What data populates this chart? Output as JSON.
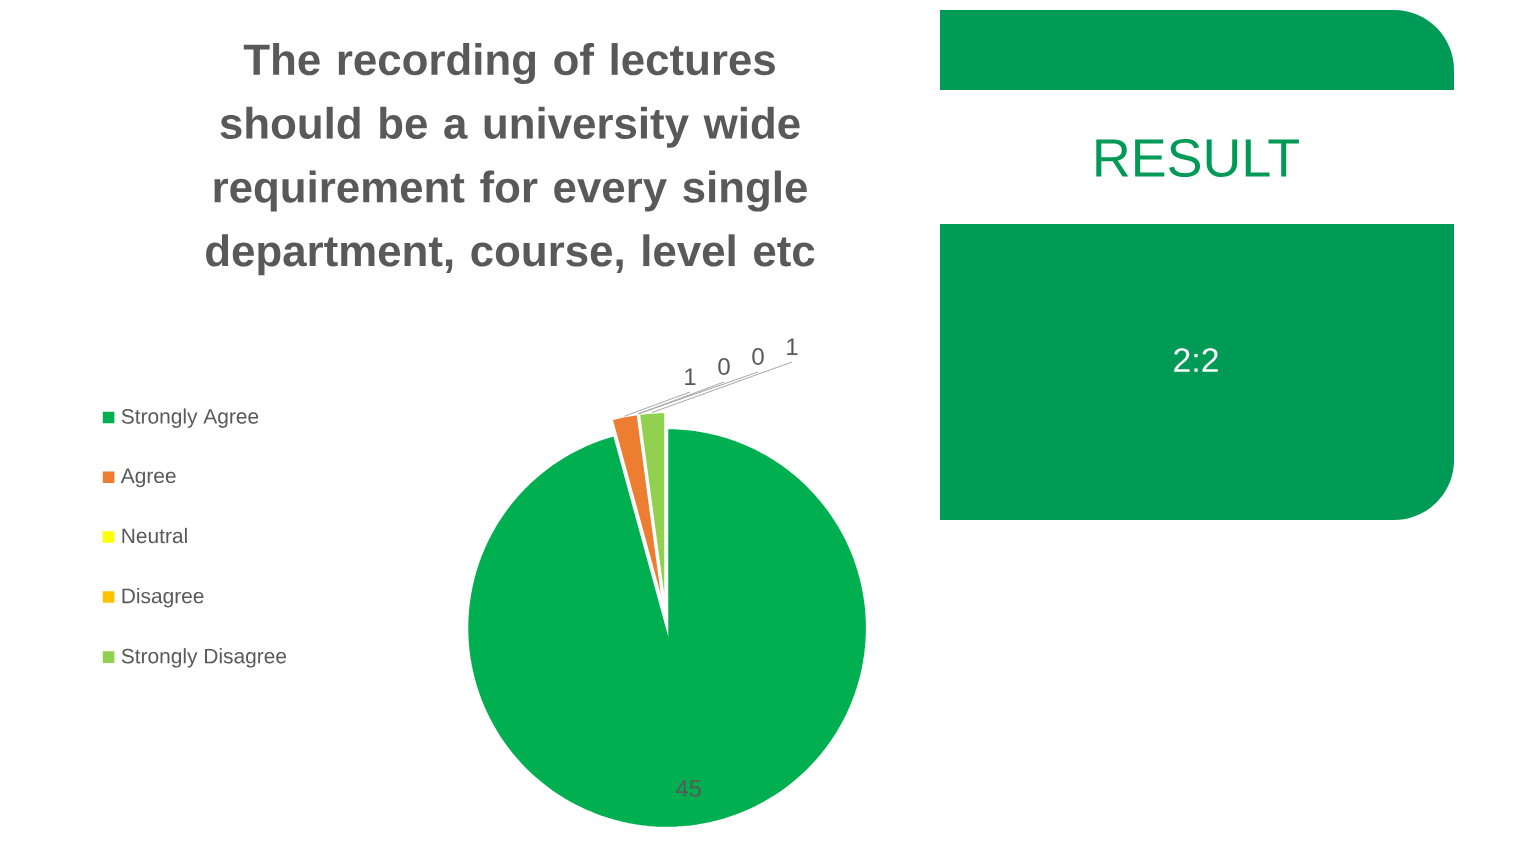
{
  "chart_data": [
    {
      "type": "pie",
      "title": "The recording of lectures should be a university wide requirement for every single department, course, level etc",
      "categories": [
        "Strongly Agree",
        "Agree",
        "Neutral",
        "Disagree",
        "Strongly Disagree"
      ],
      "values": [
        45,
        1,
        0,
        0,
        1
      ],
      "colors": [
        "#00b050",
        "#ed7d31",
        "#ffff00",
        "#ffc000",
        "#92d050"
      ],
      "value_labels": [
        "45",
        "1",
        "0",
        "0",
        "1"
      ],
      "legend": "left"
    },
    {
      "type": "other",
      "title": "RESULT",
      "annotations": [
        "2:2"
      ],
      "color": "#009a57"
    }
  ]
}
